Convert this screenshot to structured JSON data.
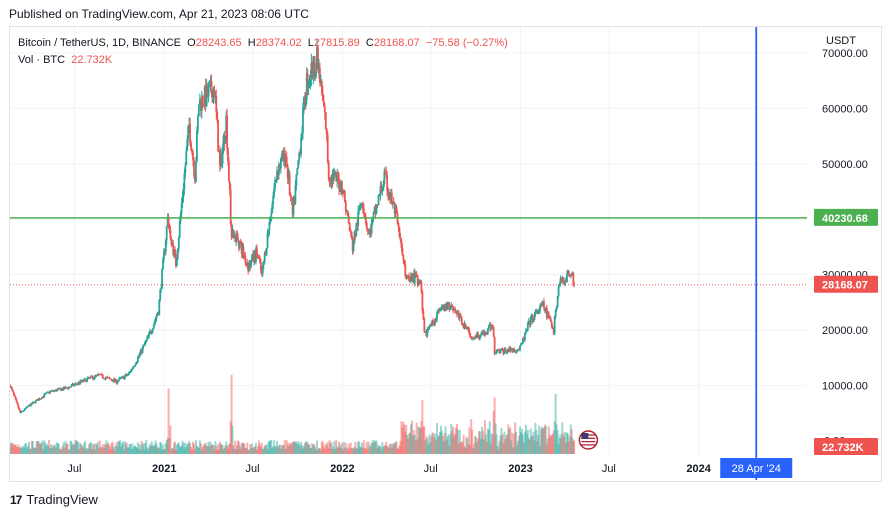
{
  "header": {
    "published": "Published on TradingView.com, Apr 21, 2023 08:06 UTC"
  },
  "legend": {
    "symbol": "Bitcoin / TetherUS, 1D, BINANCE",
    "o_label": "O",
    "o": "28243.65",
    "h_label": "H",
    "h": "28374.02",
    "l_label": "L",
    "l": "27815.89",
    "c_label": "C",
    "c": "28168.07",
    "change": "−75.58 (−0.27%)",
    "vol_label": "Vol · BTC",
    "vol": "22.732K"
  },
  "footer": {
    "brand": "TradingView",
    "logo": "17"
  },
  "colors": {
    "up": "#26a69a",
    "down": "#ef5350",
    "hline": "#4caf50",
    "vline": "#2962ff",
    "grid": "#f0f3fa"
  },
  "chart_data": {
    "type": "candlestick",
    "title": "Bitcoin / TetherUS, 1D, BINANCE",
    "currency": "USDT",
    "y_ticks": [
      10000,
      20000,
      30000,
      40000,
      50000,
      60000,
      70000
    ],
    "y_tick_labels": [
      "10000.00",
      "20000.00",
      "30000.00",
      "40000.00",
      "50000.00",
      "60000.00",
      "70000.00"
    ],
    "y_range": [
      -2400,
      74700
    ],
    "x_ticks": [
      {
        "date": "2020-07-01",
        "label": "Jul",
        "bold": false
      },
      {
        "date": "2021-01-01",
        "label": "2021",
        "bold": true
      },
      {
        "date": "2021-07-01",
        "label": "Jul",
        "bold": false
      },
      {
        "date": "2022-01-01",
        "label": "2022",
        "bold": true
      },
      {
        "date": "2022-07-01",
        "label": "Jul",
        "bold": false
      },
      {
        "date": "2023-01-01",
        "label": "2023",
        "bold": true
      },
      {
        "date": "2023-07-01",
        "label": "Jul",
        "bold": false
      },
      {
        "date": "2024-01-01",
        "label": "2024",
        "bold": true
      }
    ],
    "x_range": [
      "2020-02-20",
      "2024-08-10"
    ],
    "series_close": [
      {
        "date": "2020-02-20",
        "close": 10000
      },
      {
        "date": "2020-03-12",
        "close": 5000
      },
      {
        "date": "2020-03-28",
        "close": 6200
      },
      {
        "date": "2020-05-10",
        "close": 8800
      },
      {
        "date": "2020-06-15",
        "close": 9500
      },
      {
        "date": "2020-07-25",
        "close": 11000
      },
      {
        "date": "2020-08-20",
        "close": 11800
      },
      {
        "date": "2020-09-25",
        "close": 10700
      },
      {
        "date": "2020-10-20",
        "close": 12000
      },
      {
        "date": "2020-11-10",
        "close": 15300
      },
      {
        "date": "2020-12-01",
        "close": 19000
      },
      {
        "date": "2020-12-20",
        "close": 23500
      },
      {
        "date": "2021-01-08",
        "close": 40000
      },
      {
        "date": "2021-01-25",
        "close": 32000
      },
      {
        "date": "2021-02-21",
        "close": 57000
      },
      {
        "date": "2021-03-05",
        "close": 48000
      },
      {
        "date": "2021-03-13",
        "close": 61000
      },
      {
        "date": "2021-04-14",
        "close": 63500
      },
      {
        "date": "2021-04-25",
        "close": 49000
      },
      {
        "date": "2021-05-08",
        "close": 58000
      },
      {
        "date": "2021-05-19",
        "close": 37000
      },
      {
        "date": "2021-06-01",
        "close": 36500
      },
      {
        "date": "2021-06-22",
        "close": 31500
      },
      {
        "date": "2021-07-10",
        "close": 34000
      },
      {
        "date": "2021-07-20",
        "close": 29800
      },
      {
        "date": "2021-08-20",
        "close": 49000
      },
      {
        "date": "2021-09-07",
        "close": 51500
      },
      {
        "date": "2021-09-21",
        "close": 40500
      },
      {
        "date": "2021-10-20",
        "close": 65000
      },
      {
        "date": "2021-11-10",
        "close": 68800
      },
      {
        "date": "2021-11-28",
        "close": 57000
      },
      {
        "date": "2021-12-04",
        "close": 48000
      },
      {
        "date": "2021-12-31",
        "close": 46300
      },
      {
        "date": "2022-01-22",
        "close": 35000
      },
      {
        "date": "2022-02-10",
        "close": 44000
      },
      {
        "date": "2022-02-24",
        "close": 37000
      },
      {
        "date": "2022-03-28",
        "close": 47500
      },
      {
        "date": "2022-04-20",
        "close": 41000
      },
      {
        "date": "2022-05-10",
        "close": 30000
      },
      {
        "date": "2022-06-10",
        "close": 29000
      },
      {
        "date": "2022-06-18",
        "close": 19000
      },
      {
        "date": "2022-07-20",
        "close": 23500
      },
      {
        "date": "2022-08-14",
        "close": 24500
      },
      {
        "date": "2022-09-20",
        "close": 19000
      },
      {
        "date": "2022-10-20",
        "close": 19200
      },
      {
        "date": "2022-11-05",
        "close": 21000
      },
      {
        "date": "2022-11-09",
        "close": 16000
      },
      {
        "date": "2022-12-31",
        "close": 16600
      },
      {
        "date": "2023-01-20",
        "close": 21500
      },
      {
        "date": "2023-02-16",
        "close": 24500
      },
      {
        "date": "2023-03-10",
        "close": 20000
      },
      {
        "date": "2023-03-20",
        "close": 28000
      },
      {
        "date": "2023-04-14",
        "close": 30500
      },
      {
        "date": "2023-04-21",
        "close": 28168
      }
    ],
    "horizontal_line": {
      "value": 40230.68,
      "label": "40230.68"
    },
    "last_price": {
      "value": 28168.07,
      "label": "28168.07"
    },
    "vertical_line": {
      "date": "2024-04-28",
      "label": "28 Apr '24"
    },
    "volume": {
      "last_label": "22.732K",
      "peak_dates": [
        "2021-01-11",
        "2021-05-19",
        "2022-06-13",
        "2022-11-09",
        "2023-03-13"
      ]
    }
  }
}
